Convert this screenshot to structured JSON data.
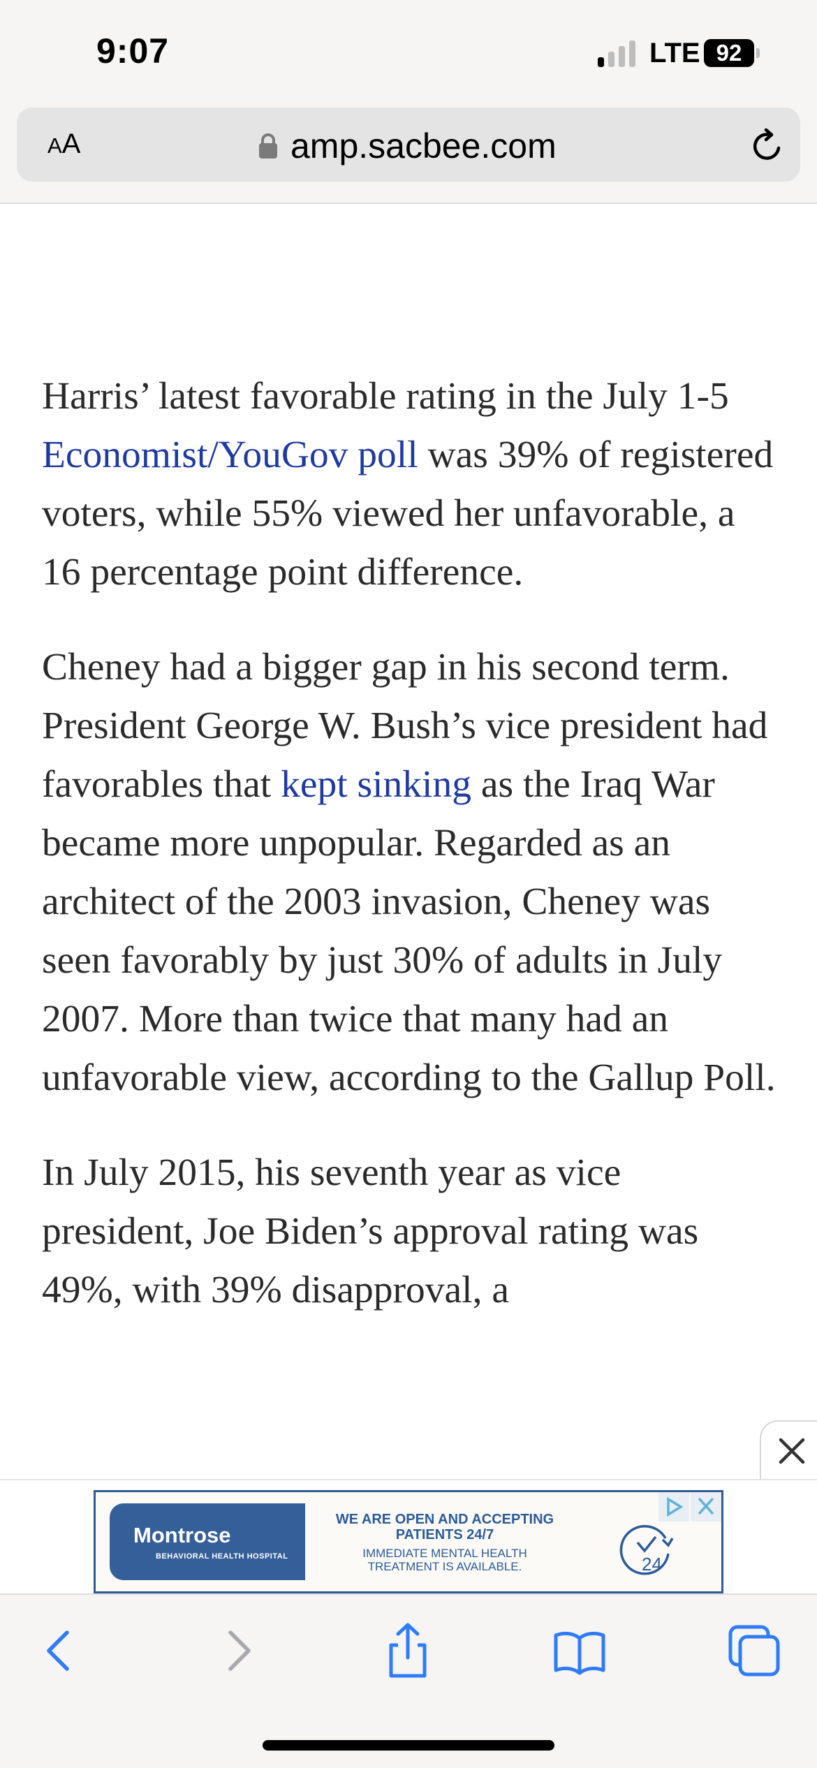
{
  "status_bar": {
    "time": "9:07",
    "network": "LTE",
    "battery": "92"
  },
  "address_bar": {
    "aa_large": "A",
    "aa_small": "A",
    "url": "amp.sacbee.com"
  },
  "article": {
    "p1": {
      "before": "Harris’ latest favorable rating in the July 1-5 ",
      "link": "Economist/YouGov poll",
      "after": " was 39% of registered voters, while 55% viewed her unfavorable, a 16 percentage point difference."
    },
    "p2": {
      "before": "Cheney had a bigger gap in his second term. President George W. Bush’s vice president had favorables that ",
      "link": "kept sinking",
      "after": " as the Iraq War became more unpopular. Regarded as an architect of the 2003 invasion, Cheney was seen favorably by just 30% of adults in July 2007. More than twice that many had an unfavorable view, according to the Gallup Poll."
    },
    "p3": {
      "text": "In July 2015, his seventh year as vice president, Joe Biden’s approval rating was 49%, with 39% disapproval, a"
    }
  },
  "ad": {
    "logo_name": "Montrose",
    "logo_sub": "BEHAVIORAL HEALTH HOSPITAL",
    "headline": "WE ARE OPEN AND ACCEPTING PATIENTS 24/7",
    "sub": "IMMEDIATE MENTAL HEALTH TREATMENT IS AVAILABLE.",
    "clock_label": "24"
  },
  "colors": {
    "link": "#1f3aa0",
    "ad_blue": "#355f99",
    "toolbar_icon": "#2f7cf6"
  },
  "icons": {
    "lock": "lock-icon",
    "reload": "reload-icon",
    "back": "chevron-left-icon",
    "forward": "chevron-right-icon",
    "share": "share-icon",
    "bookmarks": "book-icon",
    "tabs": "tabs-icon",
    "close": "close-icon"
  }
}
